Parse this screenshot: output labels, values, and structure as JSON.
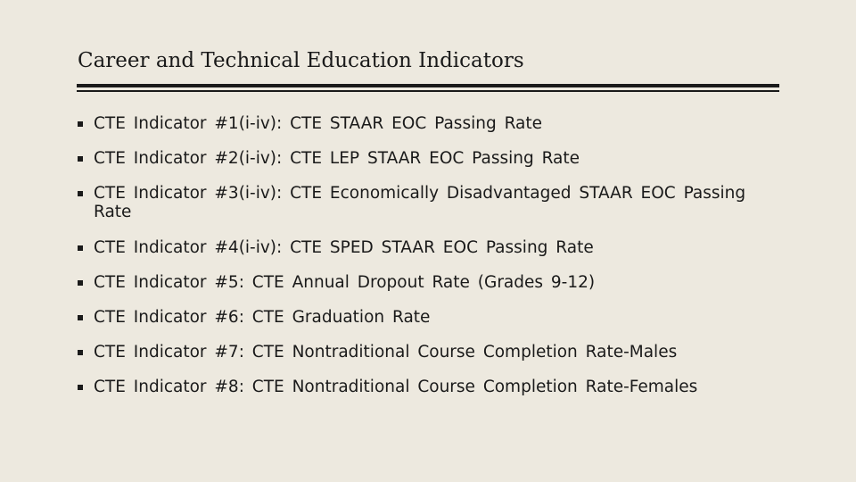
{
  "slide": {
    "title": "Career and Technical Education Indicators",
    "items": [
      "CTE Indicator #1(i-iv): CTE STAAR EOC Passing Rate",
      "CTE Indicator #2(i-iv): CTE LEP STAAR EOC Passing Rate",
      "CTE Indicator #3(i-iv): CTE Economically Disadvantaged STAAR EOC Passing Rate",
      "CTE Indicator #4(i-iv): CTE SPED STAAR EOC Passing Rate",
      "CTE Indicator #5: CTE Annual Dropout Rate (Grades 9-12)",
      "CTE Indicator #6: CTE Graduation Rate",
      "CTE Indicator #7: CTE Nontraditional Course Completion Rate-Males",
      "CTE Indicator #8: CTE Nontraditional Course Completion Rate-Females"
    ],
    "bullet_icon": "square-bullet-icon",
    "colors": {
      "background": "#ede9df",
      "text": "#1a1a1a"
    }
  }
}
